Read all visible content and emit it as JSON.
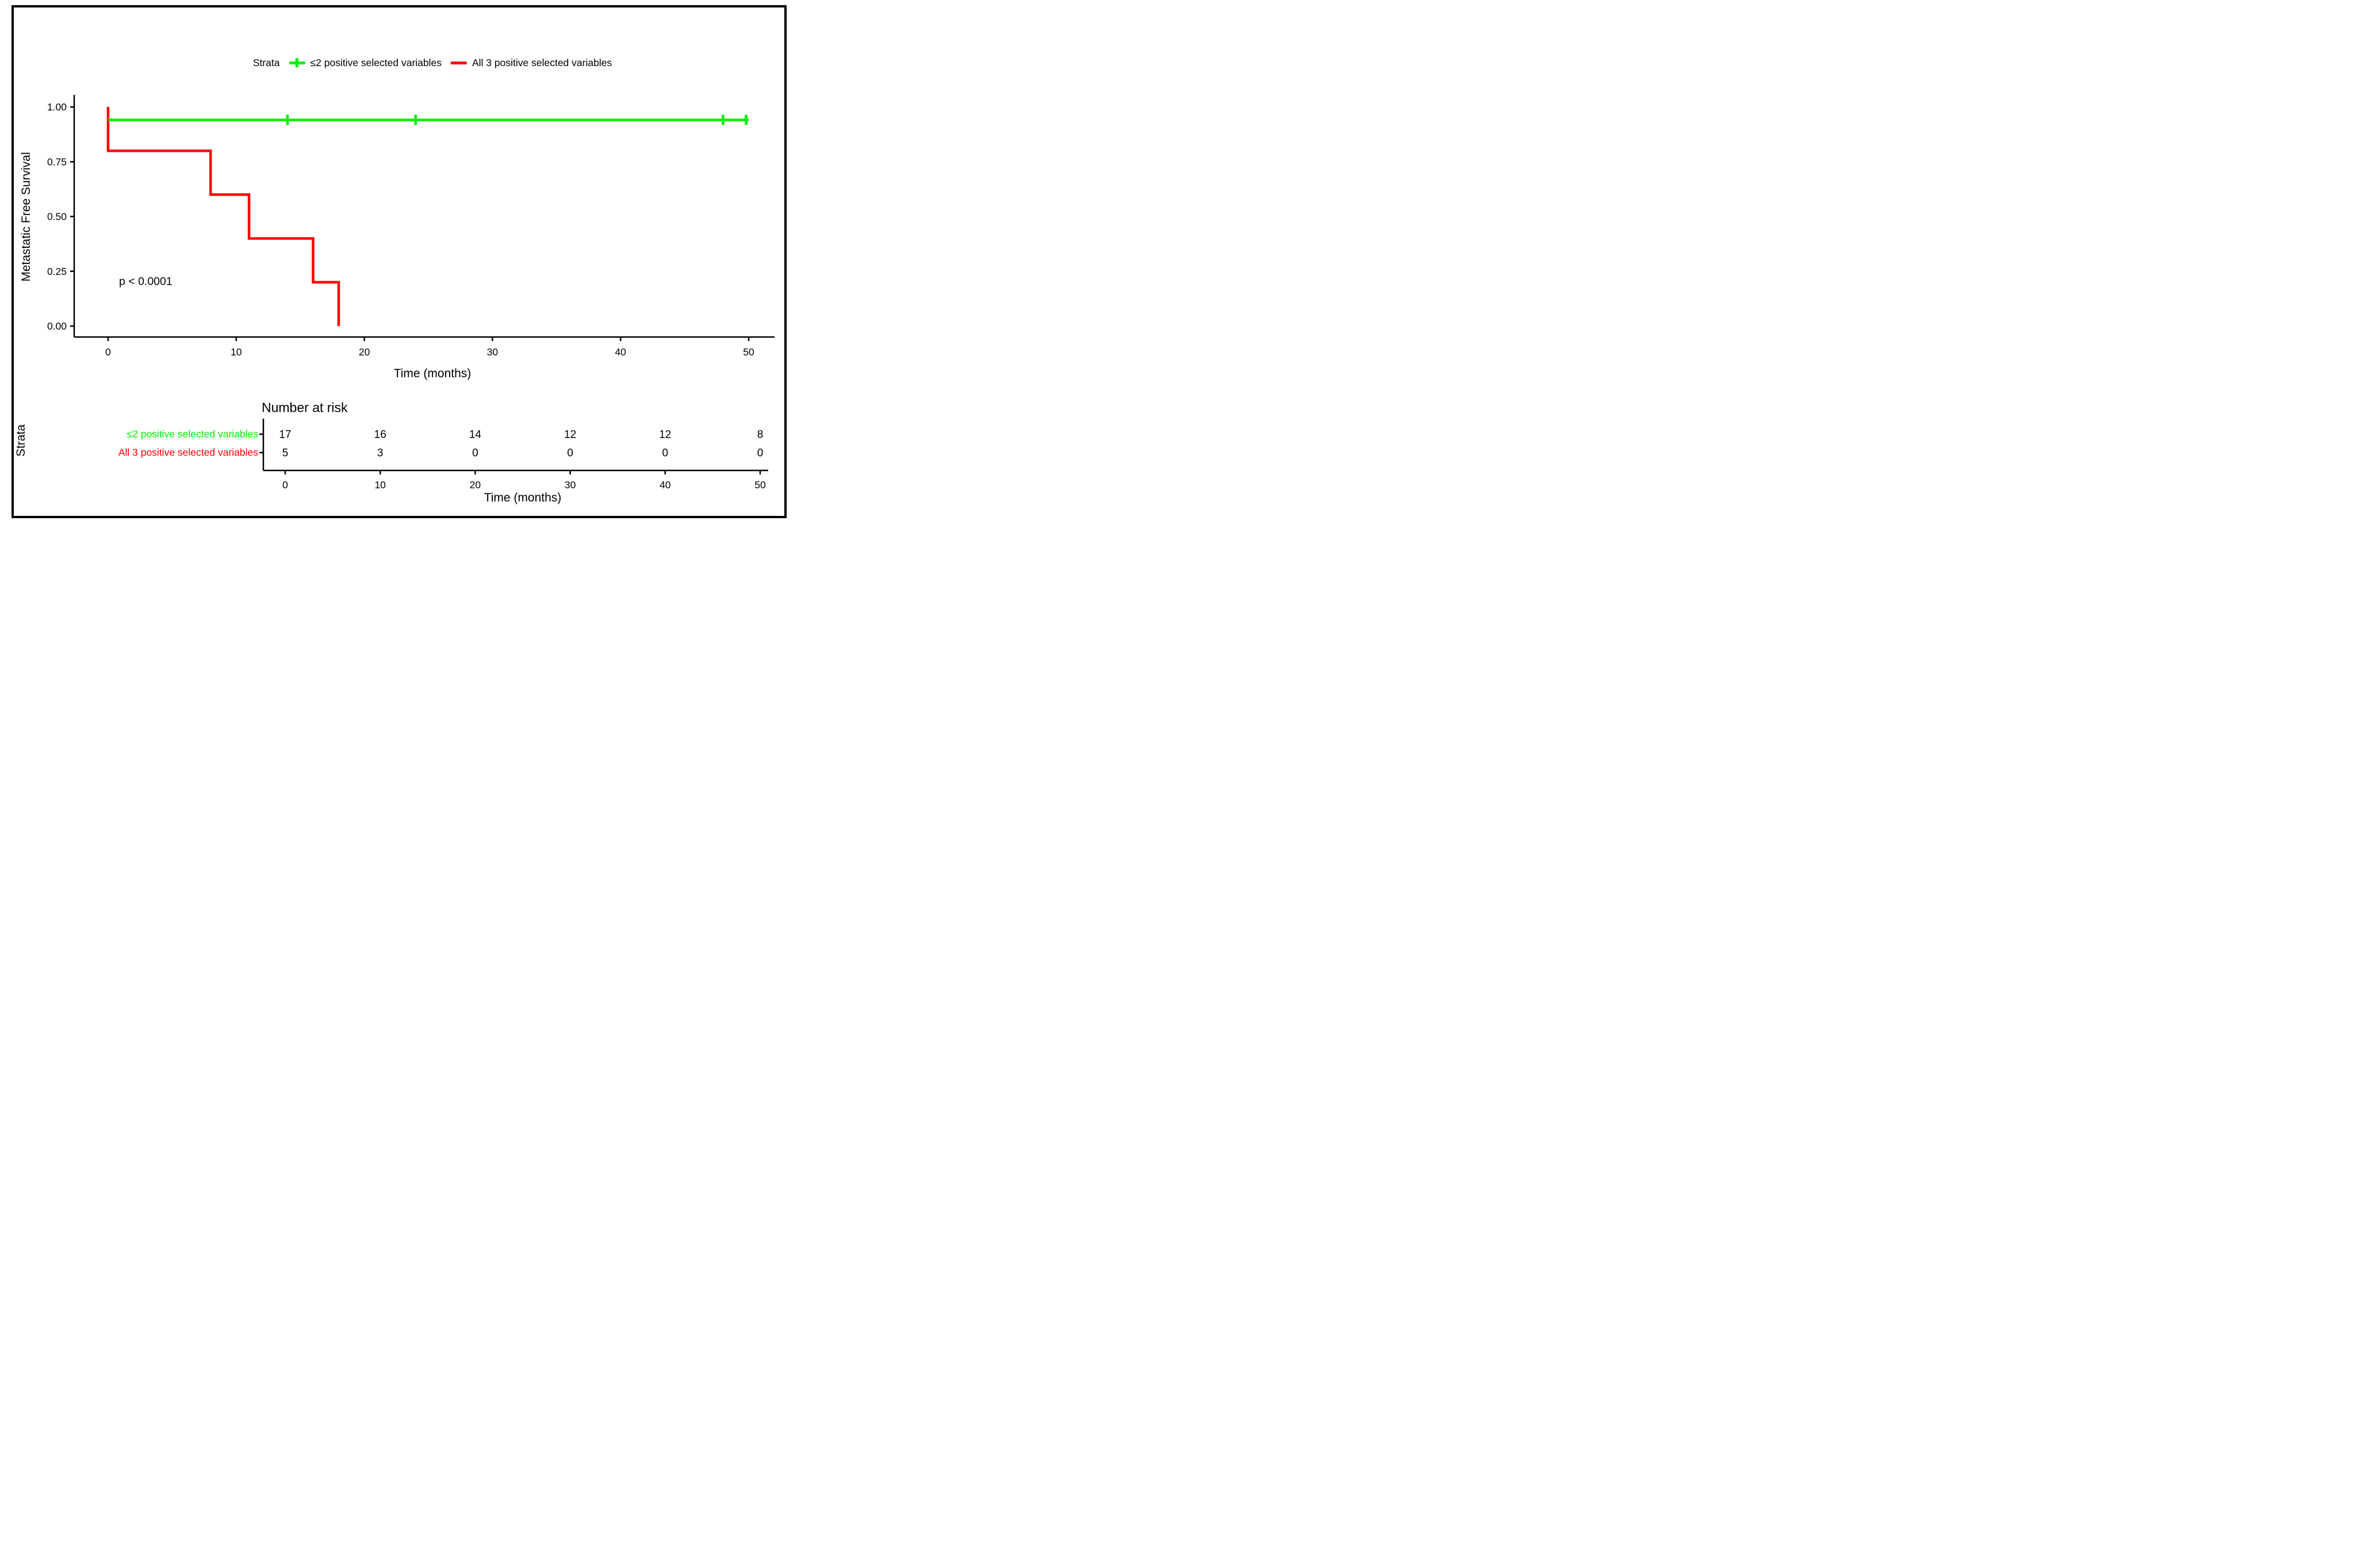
{
  "figure": {
    "background": "#ffffff",
    "border_color": "#000000",
    "text_color": "#000000"
  },
  "legend": {
    "title": "Strata",
    "items": [
      {
        "label": "≤2 positive selected variables",
        "color": "#00F000",
        "marker": "plus-icon"
      },
      {
        "label": "All 3 positive selected variables",
        "color": "#FF0000",
        "marker": "dash-icon"
      }
    ]
  },
  "chart_data": {
    "type": "line",
    "subtype": "kaplan-meier-step",
    "title": "",
    "xlabel": "Time (months)",
    "ylabel": "Metastatic Free Survival",
    "xlim": [
      0,
      50
    ],
    "ylim": [
      0,
      1
    ],
    "x_ticks": [
      "0",
      "10",
      "20",
      "30",
      "40",
      "50"
    ],
    "y_ticks": [
      "0.00",
      "0.25",
      "0.50",
      "0.75",
      "1.00"
    ],
    "grid": "off",
    "legend_position": "top",
    "annotation": {
      "text": "p < 0.0001"
    },
    "series": [
      {
        "name": "≤2 positive selected variables",
        "color": "#00F000",
        "steps": [
          [
            0,
            0.941
          ],
          [
            50,
            0.941
          ]
        ],
        "censor_times": [
          14,
          24,
          48,
          49.8
        ],
        "censor_survival": 0.941
      },
      {
        "name": "All 3 positive selected variables",
        "color": "#FF0000",
        "steps": [
          [
            0,
            1.0
          ],
          [
            0,
            0.8
          ],
          [
            8,
            0.8
          ],
          [
            8,
            0.6
          ],
          [
            11,
            0.6
          ],
          [
            11,
            0.4
          ],
          [
            16,
            0.4
          ],
          [
            16,
            0.2
          ],
          [
            18,
            0.2
          ],
          [
            18,
            0.0
          ]
        ],
        "censor_times": [],
        "censor_survival": null
      }
    ]
  },
  "risk_table": {
    "title": "Number at risk",
    "strata_axis_title": "Strata",
    "time_axis_label": "Time (months)",
    "x_ticks": [
      "0",
      "10",
      "20",
      "30",
      "40",
      "50"
    ],
    "rows": [
      {
        "label": "≤2 positive selected variables",
        "color": "#00F000",
        "counts": [
          "17",
          "16",
          "14",
          "12",
          "12",
          "8"
        ]
      },
      {
        "label": "All 3 positive selected variables",
        "color": "#FF0000",
        "counts": [
          "5",
          "3",
          "0",
          "0",
          "0",
          "0"
        ]
      }
    ]
  }
}
